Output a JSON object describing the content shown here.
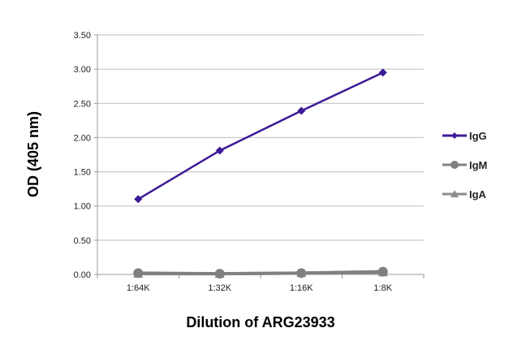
{
  "chart_data": {
    "type": "line",
    "title": "",
    "xlabel": "Dilution of ARG23933",
    "ylabel": "OD (405 nm)",
    "categories": [
      "1:64K",
      "1:32K",
      "1:16K",
      "1:8K"
    ],
    "ylim": [
      0,
      3.5
    ],
    "yticks": [
      "0.00",
      "0.50",
      "1.00",
      "1.50",
      "2.00",
      "2.50",
      "3.00",
      "3.50"
    ],
    "grid": true,
    "legend_placement": "right",
    "series": [
      {
        "name": "IgG",
        "values": [
          1.1,
          1.81,
          2.39,
          2.95
        ],
        "color": "#3d1a96",
        "marker": "diamond"
      },
      {
        "name": "IgM",
        "values": [
          0.02,
          0.01,
          0.02,
          0.04
        ],
        "color": "#808080",
        "marker": "circle"
      },
      {
        "name": "IgA",
        "values": [
          0.01,
          0.01,
          0.02,
          0.03
        ],
        "color": "#8c8c8c",
        "marker": "triangle"
      }
    ]
  }
}
